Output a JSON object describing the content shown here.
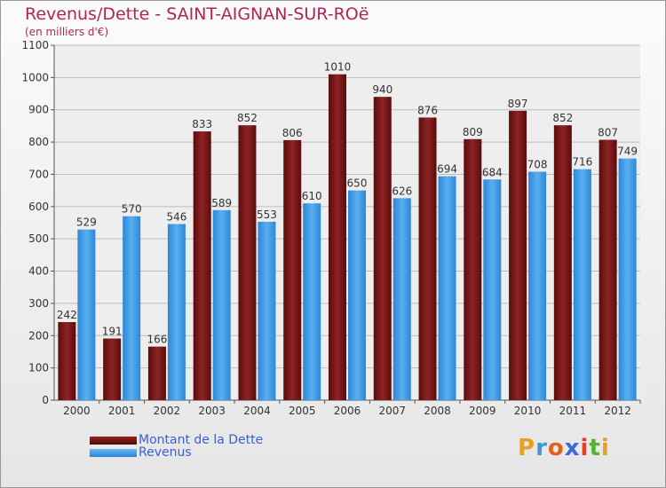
{
  "title": "Revenus/Dette - SAINT-AIGNAN-SUR-ROë",
  "subtitle": "(en milliers d'€)",
  "logo": {
    "letters": [
      "P",
      "r",
      "o",
      "x",
      "i",
      "t",
      "i"
    ],
    "colors": [
      "#e8a020",
      "#3a9ad8",
      "#e06020",
      "#3a6ad8",
      "#e84020",
      "#58b030",
      "#e8a020"
    ]
  },
  "chart_data": {
    "type": "bar",
    "categories": [
      "2000",
      "2001",
      "2002",
      "2003",
      "2004",
      "2005",
      "2006",
      "2007",
      "2008",
      "2009",
      "2010",
      "2011",
      "2012"
    ],
    "series": [
      {
        "name": "Montant de la Dette",
        "values": [
          242,
          191,
          166,
          833,
          852,
          806,
          1010,
          940,
          876,
          809,
          897,
          852,
          807
        ],
        "color": "#7a1818"
      },
      {
        "name": "Revenus",
        "values": [
          529,
          570,
          546,
          589,
          553,
          610,
          650,
          626,
          694,
          684,
          708,
          716,
          749
        ],
        "color": "#3d9ae8"
      }
    ],
    "yticks": [
      0,
      100,
      200,
      300,
      400,
      500,
      600,
      700,
      800,
      900,
      1000,
      1100
    ],
    "ylim": [
      0,
      1100
    ],
    "grid": true,
    "legend_position": "bottom-left"
  }
}
